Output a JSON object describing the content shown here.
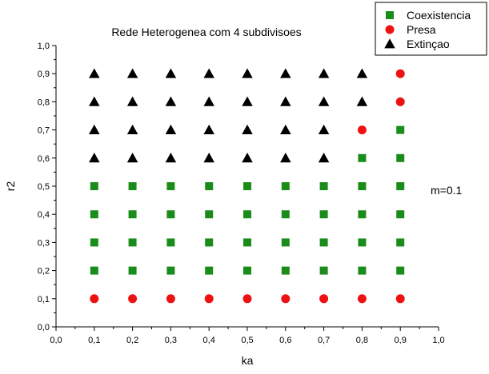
{
  "chart_data": {
    "type": "scatter",
    "title": "Rede Heterogenea com 4 subdivisoes",
    "xlabel": "ka",
    "ylabel": "r2",
    "xlim": [
      0.0,
      1.0
    ],
    "ylim": [
      0.0,
      1.0
    ],
    "xticks": [
      "0,0",
      "0,1",
      "0,2",
      "0,3",
      "0,4",
      "0,5",
      "0,6",
      "0,7",
      "0,8",
      "0,9",
      "1,0"
    ],
    "yticks": [
      "0,0",
      "0,1",
      "0,2",
      "0,3",
      "0,4",
      "0,5",
      "0,6",
      "0,7",
      "0,8",
      "0,9",
      "1,0"
    ],
    "grid": false,
    "legend_position": "top-right",
    "annotation": "m=0.1",
    "series": [
      {
        "name": "Coexistencia",
        "marker": "square",
        "color": "#1a8c1a",
        "points": [
          [
            0.1,
            0.2
          ],
          [
            0.1,
            0.3
          ],
          [
            0.1,
            0.4
          ],
          [
            0.1,
            0.5
          ],
          [
            0.2,
            0.2
          ],
          [
            0.2,
            0.3
          ],
          [
            0.2,
            0.4
          ],
          [
            0.2,
            0.5
          ],
          [
            0.3,
            0.2
          ],
          [
            0.3,
            0.3
          ],
          [
            0.3,
            0.4
          ],
          [
            0.3,
            0.5
          ],
          [
            0.4,
            0.2
          ],
          [
            0.4,
            0.3
          ],
          [
            0.4,
            0.4
          ],
          [
            0.4,
            0.5
          ],
          [
            0.5,
            0.2
          ],
          [
            0.5,
            0.3
          ],
          [
            0.5,
            0.4
          ],
          [
            0.5,
            0.5
          ],
          [
            0.6,
            0.2
          ],
          [
            0.6,
            0.3
          ],
          [
            0.6,
            0.4
          ],
          [
            0.6,
            0.5
          ],
          [
            0.7,
            0.2
          ],
          [
            0.7,
            0.3
          ],
          [
            0.7,
            0.4
          ],
          [
            0.7,
            0.5
          ],
          [
            0.8,
            0.2
          ],
          [
            0.8,
            0.3
          ],
          [
            0.8,
            0.4
          ],
          [
            0.8,
            0.5
          ],
          [
            0.8,
            0.6
          ],
          [
            0.9,
            0.2
          ],
          [
            0.9,
            0.3
          ],
          [
            0.9,
            0.4
          ],
          [
            0.9,
            0.5
          ],
          [
            0.9,
            0.6
          ],
          [
            0.9,
            0.7
          ]
        ]
      },
      {
        "name": "Presa",
        "marker": "circle",
        "color": "#ee1111",
        "points": [
          [
            0.1,
            0.1
          ],
          [
            0.2,
            0.1
          ],
          [
            0.3,
            0.1
          ],
          [
            0.4,
            0.1
          ],
          [
            0.5,
            0.1
          ],
          [
            0.6,
            0.1
          ],
          [
            0.7,
            0.1
          ],
          [
            0.8,
            0.1
          ],
          [
            0.9,
            0.1
          ],
          [
            0.8,
            0.7
          ],
          [
            0.9,
            0.8
          ],
          [
            0.9,
            0.9
          ]
        ]
      },
      {
        "name": "Extinçao",
        "marker": "triangle",
        "color": "#000000",
        "points": [
          [
            0.1,
            0.6
          ],
          [
            0.1,
            0.7
          ],
          [
            0.1,
            0.8
          ],
          [
            0.1,
            0.9
          ],
          [
            0.2,
            0.6
          ],
          [
            0.2,
            0.7
          ],
          [
            0.2,
            0.8
          ],
          [
            0.2,
            0.9
          ],
          [
            0.3,
            0.6
          ],
          [
            0.3,
            0.7
          ],
          [
            0.3,
            0.8
          ],
          [
            0.3,
            0.9
          ],
          [
            0.4,
            0.6
          ],
          [
            0.4,
            0.7
          ],
          [
            0.4,
            0.8
          ],
          [
            0.4,
            0.9
          ],
          [
            0.5,
            0.6
          ],
          [
            0.5,
            0.7
          ],
          [
            0.5,
            0.8
          ],
          [
            0.5,
            0.9
          ],
          [
            0.6,
            0.6
          ],
          [
            0.6,
            0.7
          ],
          [
            0.6,
            0.8
          ],
          [
            0.6,
            0.9
          ],
          [
            0.7,
            0.6
          ],
          [
            0.7,
            0.7
          ],
          [
            0.7,
            0.8
          ],
          [
            0.7,
            0.9
          ],
          [
            0.8,
            0.8
          ],
          [
            0.8,
            0.9
          ]
        ]
      }
    ]
  }
}
